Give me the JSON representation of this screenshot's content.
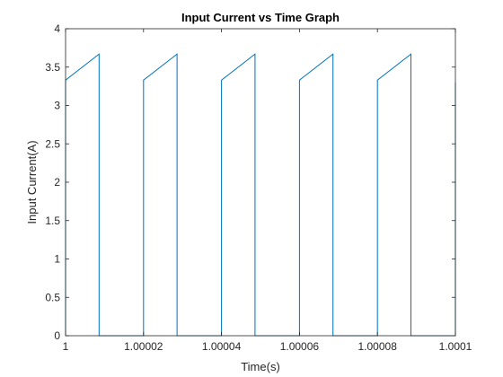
{
  "chart_data": {
    "type": "line",
    "title": "Input Current vs Time Graph",
    "xlabel": "Time(s)",
    "ylabel": "Input Current(A)",
    "xlim": [
      1,
      1.0001
    ],
    "ylim": [
      0,
      4
    ],
    "xticks": [
      1,
      1.00002,
      1.00004,
      1.00006,
      1.00008,
      1.0001
    ],
    "xtick_labels": [
      "1",
      "1.00002",
      "1.00004",
      "1.00006",
      "1.00008",
      "1.0001"
    ],
    "yticks": [
      0,
      0.5,
      1,
      1.5,
      2,
      2.5,
      3,
      3.5,
      4
    ],
    "ytick_labels": [
      "0",
      "0.5",
      "1",
      "1.5",
      "2",
      "2.5",
      "3",
      "3.5",
      "4"
    ],
    "grid": false,
    "line_color": "#0072BD",
    "series": [
      {
        "x": [
          1.0,
          1.0,
          1.0000086,
          1.0000086,
          1.00002,
          1.00002,
          1.0000286,
          1.0000286,
          1.00004,
          1.00004,
          1.0000486,
          1.0000486,
          1.00006,
          1.00006,
          1.0000686,
          1.0000686,
          1.00008,
          1.00008,
          1.0000886,
          1.0000886,
          1.0001,
          1.0001
        ],
        "y": [
          0,
          3.33,
          3.67,
          0,
          0,
          3.33,
          3.67,
          0,
          0,
          3.33,
          3.67,
          0,
          0,
          3.33,
          3.67,
          0,
          0,
          3.33,
          3.67,
          0,
          0,
          3.3
        ]
      }
    ]
  }
}
